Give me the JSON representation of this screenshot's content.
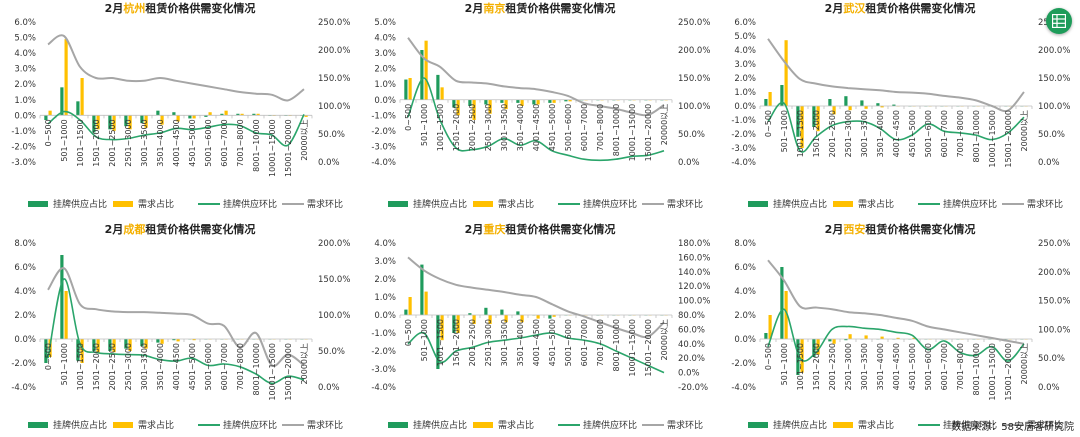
{
  "source": "数据来源：58安居客研究院",
  "legend": [
    "挂牌供应占比",
    "需求占比",
    "挂牌供应环比",
    "需求环比"
  ],
  "colors": {
    "supply_bar": "#1F9B5C",
    "demand_bar": "#FFC000",
    "supply_line": "#2BA56B",
    "demand_line": "#A6A6A6"
  },
  "icons": {
    "corner_button": "spreadsheet-icon"
  },
  "chart_data": [
    {
      "type": "bar",
      "title_prefix": "2月",
      "city": "杭州",
      "title_suffix": "租赁价格供需变化情况",
      "categories": [
        "0~500",
        "501~1000",
        "1001~1500",
        "1501~2000",
        "2001~2500",
        "2501~3000",
        "3001~3500",
        "3501~4000",
        "4001~4500",
        "4501~5000",
        "5001~6000",
        "6001~7000",
        "7001~8000",
        "8001~10000",
        "10001~15000",
        "15001~20000",
        "20000以上"
      ],
      "ylim_left": [
        -3,
        6
      ],
      "yticks_left": [
        "6.0%",
        "5.0%",
        "4.0%",
        "3.0%",
        "2.0%",
        "1.0%",
        "0.0%",
        "-1.0%",
        "-2.0%",
        "-3.0%"
      ],
      "ylim_right": [
        0,
        250
      ],
      "yticks_right": [
        "250.0%",
        "200.0%",
        "150.0%",
        "100.0%",
        "50.0%",
        "0.0%"
      ],
      "series": [
        {
          "name": "挂牌供应占比",
          "values": [
            -0.3,
            1.8,
            0.9,
            -1.1,
            -0.9,
            -0.7,
            -0.5,
            0.3,
            0.2,
            -0.2,
            -0.1,
            0.1,
            0.1,
            0.1,
            0.0,
            0.0,
            0.0
          ]
        },
        {
          "name": "需求占比",
          "values": [
            0.3,
            4.9,
            2.4,
            -0.9,
            -1.0,
            -0.9,
            -0.8,
            -0.6,
            -0.4,
            -0.2,
            0.2,
            0.3,
            0.1,
            0.1,
            0.0,
            0.0,
            -0.1
          ]
        },
        {
          "name": "挂牌供应环比",
          "values": [
            68,
            90,
            75,
            45,
            40,
            42,
            48,
            52,
            60,
            58,
            62,
            67,
            65,
            52,
            48,
            30,
            85
          ]
        },
        {
          "name": "需求环比",
          "values": [
            210,
            225,
            170,
            150,
            150,
            145,
            145,
            150,
            145,
            140,
            135,
            130,
            125,
            122,
            120,
            110,
            130
          ]
        }
      ]
    },
    {
      "type": "bar",
      "title_prefix": "2月",
      "city": "南京",
      "title_suffix": "租赁价格供需变化情况",
      "categories": [
        "0~500",
        "501~1000",
        "1001~1500",
        "1501~2000",
        "2001~2500",
        "2501~3000",
        "3001~3500",
        "3501~4000",
        "4001~4500",
        "4501~5000",
        "5001~6000",
        "6001~7000",
        "7001~8000",
        "8001~10000",
        "10001~15000",
        "15001~20000",
        "20000以上"
      ],
      "ylim_left": [
        -4,
        5
      ],
      "yticks_left": [
        "5.0%",
        "4.0%",
        "3.0%",
        "2.0%",
        "1.0%",
        "0.0%",
        "-1.0%",
        "-2.0%",
        "-3.0%",
        "-4.0%"
      ],
      "ylim_right": [
        0,
        250
      ],
      "yticks_right": [
        "250.0%",
        "200.0%",
        "150.0%",
        "100.0%",
        "50.0%",
        "0.0%"
      ],
      "series": [
        {
          "name": "挂牌供应占比",
          "values": [
            1.3,
            3.2,
            1.6,
            -0.5,
            -0.4,
            -0.3,
            -0.2,
            -0.2,
            -0.3,
            -0.2,
            -0.1,
            0.0,
            0.0,
            0.0,
            0.0,
            0.0,
            0.0
          ]
        },
        {
          "name": "需求占比",
          "values": [
            1.4,
            3.8,
            0.8,
            -1.0,
            -1.3,
            -0.9,
            -0.6,
            -0.4,
            -0.3,
            -0.2,
            -0.1,
            0.0,
            0.0,
            0.0,
            0.0,
            0.0,
            0.0
          ]
        },
        {
          "name": "挂牌供应环比",
          "values": [
            80,
            150,
            75,
            25,
            22,
            28,
            42,
            30,
            38,
            20,
            12,
            5,
            3,
            5,
            10,
            12,
            20
          ]
        },
        {
          "name": "需求环比",
          "values": [
            222,
            185,
            170,
            145,
            142,
            140,
            135,
            132,
            130,
            125,
            118,
            105,
            100,
            95,
            88,
            84,
            102
          ]
        }
      ]
    },
    {
      "type": "bar",
      "title_prefix": "2月",
      "city": "武汉",
      "title_suffix": "租赁价格供需变化情况",
      "categories": [
        "0~500",
        "501~1000",
        "1001~1500",
        "1501~2000",
        "2001~2500",
        "2501~3000",
        "3001~3500",
        "3501~4000",
        "4001~4500",
        "4501~5000",
        "5001~6000",
        "6001~7000",
        "7001~8000",
        "8001~10000",
        "10001~15000",
        "15001~20000",
        "20000以上"
      ],
      "ylim_left": [
        -4,
        6
      ],
      "yticks_left": [
        "6.0%",
        "5.0%",
        "4.0%",
        "3.0%",
        "2.0%",
        "1.0%",
        "0.0%",
        "-1.0%",
        "-2.0%",
        "-3.0%",
        "-4.0%"
      ],
      "ylim_right": [
        0,
        250
      ],
      "yticks_right": [
        "250.0%",
        "200.0%",
        "150.0%",
        "100.0%",
        "50.0%",
        "0.0%"
      ],
      "series": [
        {
          "name": "挂牌供应占比",
          "values": [
            0.5,
            1.5,
            -2.2,
            -1.5,
            0.5,
            0.7,
            0.4,
            0.2,
            0.1,
            0.0,
            0.0,
            0.0,
            0.0,
            0.0,
            0.0,
            0.0,
            0.0
          ]
        },
        {
          "name": "需求占比",
          "values": [
            1.0,
            4.7,
            -3.0,
            -1.8,
            -0.6,
            -0.3,
            -0.2,
            -0.1,
            0.0,
            0.0,
            0.0,
            0.0,
            0.0,
            0.0,
            0.0,
            0.0,
            0.0
          ]
        },
        {
          "name": "挂牌供应环比",
          "values": [
            72,
            105,
            20,
            45,
            65,
            72,
            72,
            60,
            40,
            48,
            68,
            55,
            52,
            48,
            40,
            52,
            80
          ]
        },
        {
          "name": "需求环比",
          "values": [
            220,
            180,
            148,
            140,
            135,
            132,
            130,
            128,
            125,
            124,
            122,
            118,
            115,
            110,
            100,
            92,
            125
          ]
        }
      ]
    },
    {
      "type": "bar",
      "title_prefix": "2月",
      "city": "成都",
      "title_suffix": "租赁价格供需变化情况",
      "categories": [
        "0~500",
        "501~1000",
        "1001~1500",
        "1501~2000",
        "2001~2500",
        "2501~3000",
        "3001~3500",
        "3501~4000",
        "4001~4500",
        "4501~5000",
        "5001~6000",
        "6001~7000",
        "7001~8000",
        "8001~10000",
        "10001~15000",
        "15001~20000",
        "20000以上"
      ],
      "ylim_left": [
        -4,
        8
      ],
      "yticks_left": [
        "8.0%",
        "6.0%",
        "4.0%",
        "2.0%",
        "0.0%",
        "-2.0%",
        "-4.0%"
      ],
      "ylim_right": [
        0,
        200
      ],
      "yticks_right": [
        "200.0%",
        "150.0%",
        "100.0%",
        "50.0%",
        "0.0%"
      ],
      "series": [
        {
          "name": "挂牌供应占比",
          "values": [
            -2.0,
            7.0,
            -1.8,
            -1.0,
            -1.0,
            -0.8,
            -0.6,
            -0.3,
            -0.1,
            0.0,
            0.0,
            0.0,
            0.0,
            0.0,
            0.0,
            0.0,
            0.0
          ]
        },
        {
          "name": "需求占比",
          "values": [
            -1.5,
            4.0,
            -2.0,
            -1.2,
            -1.1,
            -1.0,
            -0.8,
            -0.4,
            -0.2,
            -0.1,
            0.0,
            0.0,
            0.0,
            0.0,
            0.0,
            0.0,
            0.0
          ]
        },
        {
          "name": "挂牌供应环比",
          "values": [
            40,
            150,
            60,
            48,
            46,
            45,
            44,
            38,
            36,
            40,
            30,
            32,
            28,
            18,
            5,
            15,
            10
          ]
        },
        {
          "name": "需求环比",
          "values": [
            135,
            165,
            115,
            108,
            105,
            104,
            104,
            103,
            102,
            100,
            88,
            85,
            55,
            75,
            30,
            45,
            30
          ]
        }
      ]
    },
    {
      "type": "bar",
      "title_prefix": "2月",
      "city": "重庆",
      "title_suffix": "租赁价格供需变化情况",
      "categories": [
        "0~500",
        "501~1000",
        "1001~1500",
        "1501~2000",
        "2001~2500",
        "2501~3000",
        "3001~3500",
        "3501~4000",
        "4001~4500",
        "4501~5000",
        "5001~6000",
        "6001~7000",
        "7001~8000",
        "8001~10000",
        "10001~15000",
        "15001~20000",
        "20000以上"
      ],
      "ylim_left": [
        -4,
        4
      ],
      "yticks_left": [
        "4.0%",
        "3.0%",
        "2.0%",
        "1.0%",
        "0.0%",
        "-1.0%",
        "-2.0%",
        "-3.0%",
        "-4.0%"
      ],
      "ylim_right": [
        -20,
        180
      ],
      "yticks_right": [
        "180.0%",
        "160.0%",
        "140.0%",
        "120.0%",
        "100.0%",
        "80.0%",
        "60.0%",
        "40.0%",
        "20.0%",
        "0.0%",
        "-20.0%"
      ],
      "series": [
        {
          "name": "挂牌供应占比",
          "values": [
            0.3,
            2.8,
            -3.0,
            -1.0,
            0.1,
            0.4,
            0.3,
            0.2,
            0.0,
            -0.2,
            0.0,
            0.0,
            0.0,
            0.0,
            0.0,
            0.0,
            0.0
          ]
        },
        {
          "name": "需求占比",
          "values": [
            1.0,
            1.3,
            -1.4,
            -1.0,
            -0.5,
            -0.5,
            -0.4,
            -0.4,
            -0.2,
            -0.1,
            0.0,
            0.0,
            0.0,
            0.0,
            0.0,
            0.0,
            0.0
          ]
        },
        {
          "name": "挂牌供应环比",
          "values": [
            40,
            55,
            15,
            30,
            35,
            42,
            45,
            48,
            52,
            55,
            48,
            45,
            40,
            30,
            20,
            10,
            0
          ]
        },
        {
          "name": "需求环比",
          "values": [
            160,
            142,
            130,
            122,
            118,
            115,
            112,
            108,
            105,
            95,
            85,
            78,
            70,
            62,
            55,
            50,
            70
          ]
        }
      ]
    },
    {
      "type": "bar",
      "title_prefix": "2月",
      "city": "西安",
      "title_suffix": "租赁价格供需变化情况",
      "categories": [
        "0~500",
        "501~1000",
        "1001~1500",
        "1501~2000",
        "2001~2500",
        "2501~3000",
        "3001~3500",
        "3501~4000",
        "4001~4500",
        "4501~5000",
        "5001~6000",
        "6001~7000",
        "7001~8000",
        "8001~10000",
        "10001~15000",
        "15001~20000",
        "20000以上"
      ],
      "ylim_left": [
        -4,
        8
      ],
      "yticks_left": [
        "8.0%",
        "6.0%",
        "4.0%",
        "2.0%",
        "0.0%",
        "-2.0%",
        "-4.0%"
      ],
      "ylim_right": [
        0,
        250
      ],
      "yticks_right": [
        "250.0%",
        "200.0%",
        "150.0%",
        "100.0%",
        "50.0%",
        "0.0%"
      ],
      "series": [
        {
          "name": "挂牌供应占比",
          "values": [
            0.5,
            6.0,
            -3.0,
            -1.5,
            -0.2,
            -0.1,
            0.0,
            0.0,
            0.0,
            0.0,
            0.0,
            0.0,
            0.0,
            0.0,
            0.0,
            0.0,
            0.0
          ]
        },
        {
          "name": "需求占比",
          "values": [
            2.0,
            4.0,
            -2.8,
            -1.3,
            -0.4,
            0.4,
            0.3,
            0.2,
            0.1,
            0.1,
            0.0,
            0.0,
            0.0,
            0.0,
            0.0,
            0.0,
            0.0
          ]
        },
        {
          "name": "挂牌供应环比",
          "values": [
            70,
            135,
            50,
            60,
            100,
            105,
            102,
            100,
            95,
            90,
            65,
            80,
            60,
            55,
            70,
            45,
            75
          ]
        },
        {
          "name": "需求环比",
          "values": [
            220,
            185,
            140,
            138,
            135,
            130,
            128,
            125,
            120,
            115,
            105,
            100,
            95,
            90,
            85,
            80,
            75
          ]
        }
      ]
    }
  ]
}
